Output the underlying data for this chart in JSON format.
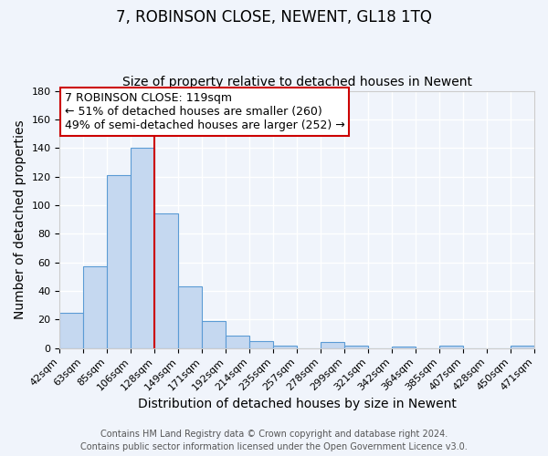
{
  "title": "7, ROBINSON CLOSE, NEWENT, GL18 1TQ",
  "subtitle": "Size of property relative to detached houses in Newent",
  "xlabel": "Distribution of detached houses by size in Newent",
  "ylabel": "Number of detached properties",
  "bar_labels": [
    "42sqm",
    "63sqm",
    "85sqm",
    "106sqm",
    "128sqm",
    "149sqm",
    "171sqm",
    "192sqm",
    "214sqm",
    "235sqm",
    "257sqm",
    "278sqm",
    "299sqm",
    "321sqm",
    "342sqm",
    "364sqm",
    "385sqm",
    "407sqm",
    "428sqm",
    "450sqm",
    "471sqm"
  ],
  "bar_values": [
    25,
    57,
    121,
    140,
    94,
    43,
    19,
    9,
    5,
    2,
    0,
    4,
    2,
    0,
    1,
    0,
    2,
    0,
    0,
    2
  ],
  "ylim": [
    0,
    180
  ],
  "yticks": [
    0,
    20,
    40,
    60,
    80,
    100,
    120,
    140,
    160,
    180
  ],
  "bar_color": "#c5d8f0",
  "bar_edge_color": "#5b9bd5",
  "annotation_text_line1": "7 ROBINSON CLOSE: 119sqm",
  "annotation_text_line2": "← 51% of detached houses are smaller (260)",
  "annotation_text_line3": "49% of semi-detached houses are larger (252) →",
  "annotation_box_color": "#ffffff",
  "annotation_box_edge_color": "#cc0000",
  "vline_color": "#cc0000",
  "footer_line1": "Contains HM Land Registry data © Crown copyright and database right 2024.",
  "footer_line2": "Contains public sector information licensed under the Open Government Licence v3.0.",
  "background_color": "#f0f4fb",
  "grid_color": "#ffffff",
  "title_fontsize": 12,
  "subtitle_fontsize": 10,
  "axis_label_fontsize": 10,
  "tick_fontsize": 8,
  "footer_fontsize": 7,
  "annotation_fontsize": 9
}
